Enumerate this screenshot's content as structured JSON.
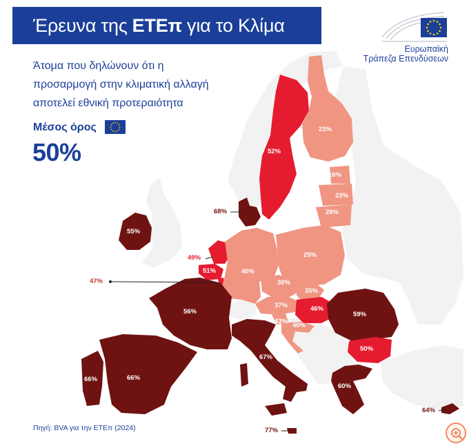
{
  "header": {
    "title_pre": "Έρευνα της",
    "title_bold": "ΕΤΕπ",
    "title_post": "για το Κλίμα"
  },
  "logo": {
    "line1": "Ευρωπαϊκή",
    "line2": "Τράπεζα Επενδύσεων"
  },
  "subtitle": {
    "line1": "Άτομα που δηλώνουν ότι η",
    "line2": "προσαρμογή στην κλιματική αλλαγή",
    "line3": "αποτελεί εθνική προτεραιότητα"
  },
  "average": {
    "label": "Μέσος όρος",
    "value": "50%"
  },
  "source": "Πηγή: BVA για την ΕΤΕπ (2024)",
  "colors": {
    "brand_blue": "#1b3f99",
    "low": "#ef9582",
    "mid": "#e51c2f",
    "high": "#6f1212",
    "non_eu": "#f2f2f2"
  },
  "countries": {
    "sweden": "52%",
    "finland": "23%",
    "estonia": "16%",
    "latvia": "23%",
    "lithuania": "28%",
    "denmark": "68%",
    "ireland": "55%",
    "netherlands": "49%",
    "belgium": "51%",
    "luxembourg": "47%",
    "poland": "25%",
    "germany": "40%",
    "czechia": "30%",
    "slovakia": "35%",
    "austria": "37%",
    "hungary": "46%",
    "slovenia": "43%",
    "croatia": "40%",
    "france": "56%",
    "romania": "59%",
    "bulgaria": "50%",
    "italy": "67%",
    "greece": "60%",
    "portugal": "66%",
    "spain": "66%",
    "cyprus": "64%",
    "malta": "77%"
  },
  "icons": [
    "eu-flag-icon",
    "zoom-icon"
  ]
}
